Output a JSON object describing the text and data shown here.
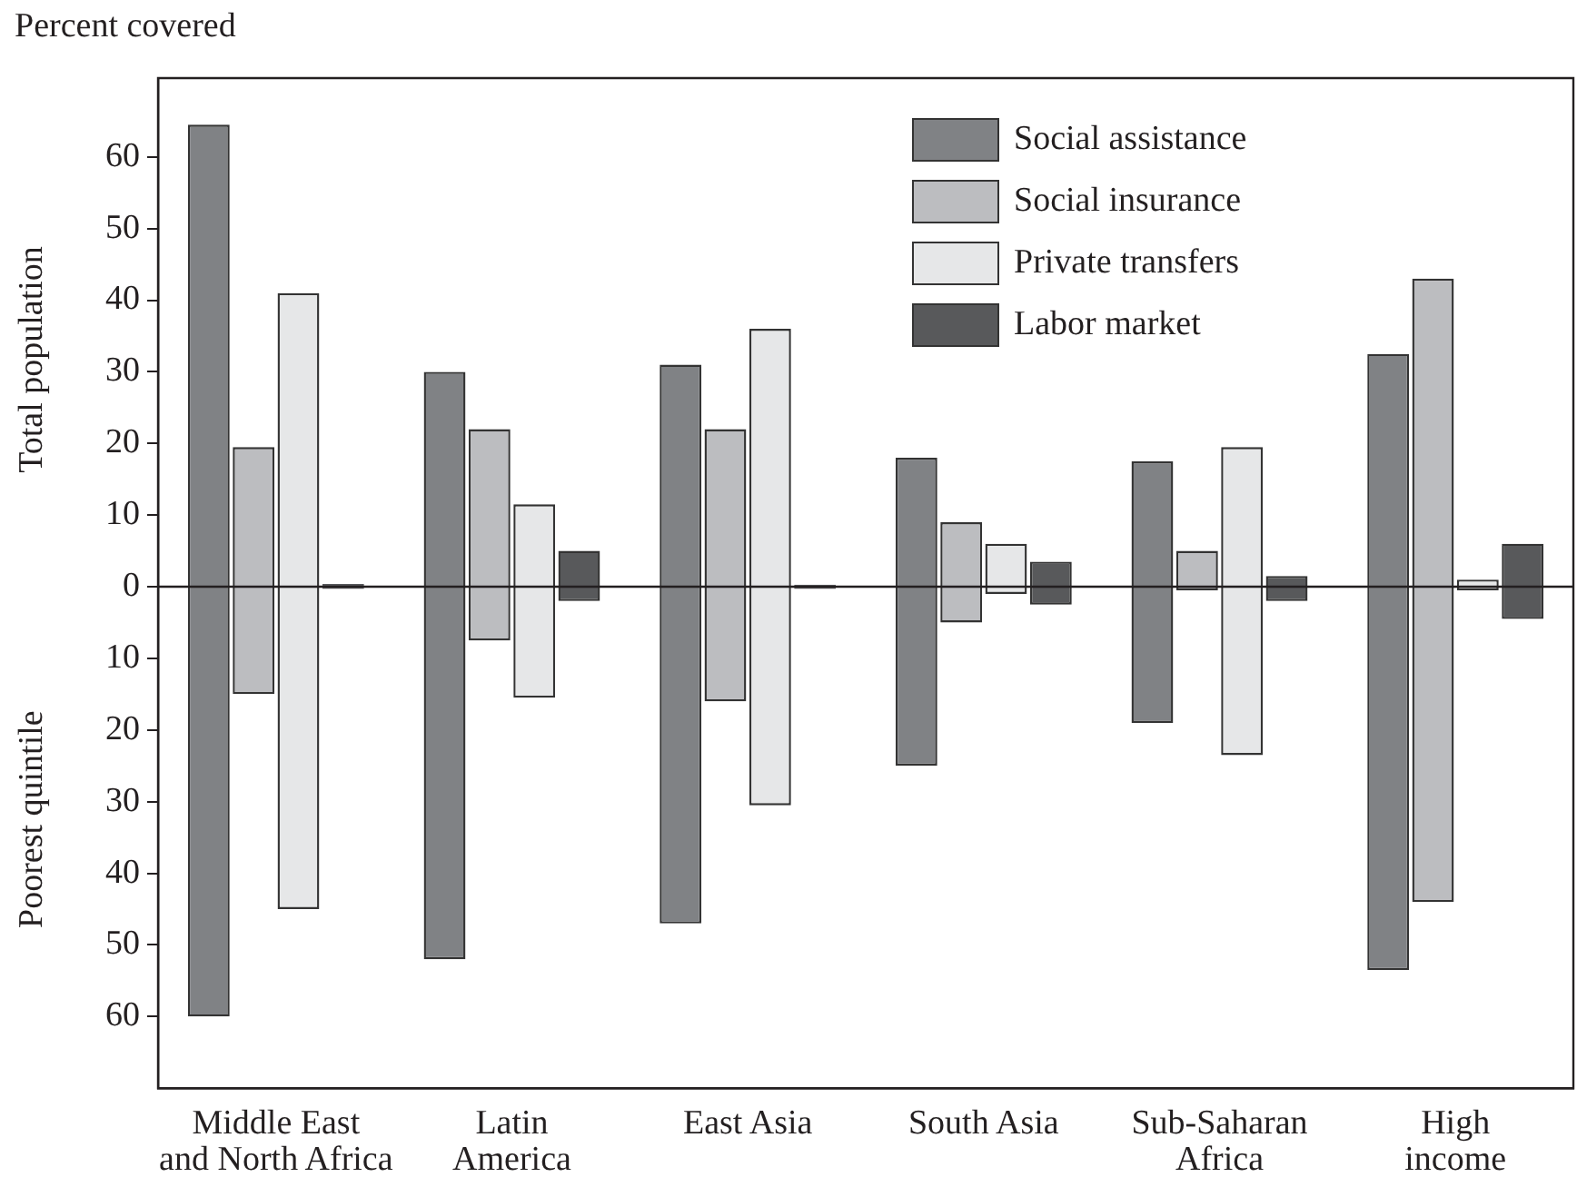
{
  "chart_data": {
    "type": "bar",
    "ylabel": "Percent covered",
    "annotations": [
      "Total population",
      "Poorest quintile"
    ],
    "categories": [
      "Middle East\nand North Africa",
      "Latin\nAmerica",
      "East Asia",
      "South Asia",
      "Sub-Saharan\nAfrica",
      "High\nincome"
    ],
    "series": [
      {
        "name": "Social assistance",
        "color": "#808285",
        "base": [
          -60,
          -52,
          -47,
          -25,
          -19,
          -53.5
        ],
        "values": [
          124.5,
          82,
          78,
          43,
          36.5,
          86
        ]
      },
      {
        "name": "Social insurance",
        "color": "#bcbdc0",
        "base": [
          -15,
          -7.5,
          -16,
          -5,
          -0.5,
          -44
        ],
        "values": [
          34.5,
          29.5,
          38,
          14,
          5.5,
          87
        ]
      },
      {
        "name": "Private transfers",
        "color": "#e6e7e8",
        "base": [
          -45,
          -15.5,
          -30.5,
          -1,
          -23.5,
          -0.5
        ],
        "values": [
          86,
          27,
          66.5,
          7,
          43,
          1.5
        ]
      },
      {
        "name": "Labor market",
        "color": "#58595b",
        "base": [
          -0.3,
          -2,
          -0.3,
          -2.5,
          -2,
          -4.5
        ],
        "values": [
          0.7,
          7,
          0.6,
          6,
          3.5,
          10.5
        ]
      }
    ],
    "ylim": [
      -70,
      71
    ],
    "yticks": [
      {
        "value": -60,
        "label": "60"
      },
      {
        "value": -50,
        "label": "50"
      },
      {
        "value": -40,
        "label": "40"
      },
      {
        "value": -30,
        "label": "30"
      },
      {
        "value": -20,
        "label": "20"
      },
      {
        "value": -10,
        "label": "10"
      },
      0,
      10,
      20,
      30,
      40,
      50,
      60
    ],
    "ref_lines": [
      {
        "axis": "y",
        "value": 0,
        "color": "#231f20"
      }
    ],
    "grid": false,
    "legend": "top right"
  }
}
